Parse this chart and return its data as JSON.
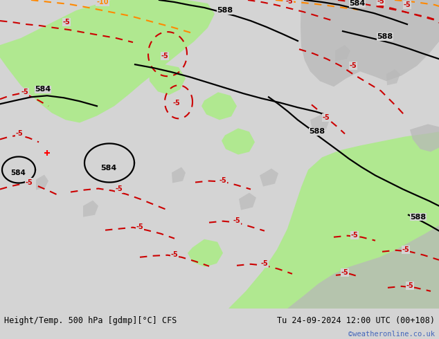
{
  "title_left": "Height/Temp. 500 hPa [gdmp][°C] CFS",
  "title_right": "Tu 24-09-2024 12:00 UTC (00+108)",
  "credit": "©weatheronline.co.uk",
  "bg_color": "#d4d4d4",
  "land_color": "#b8b8b8",
  "green_color": "#b0e890",
  "bottom_bar_color": "#e0e0e0",
  "black_color": "#000000",
  "red_color": "#cc0000",
  "orange_color": "#ff8800",
  "credit_color": "#4466bb",
  "figsize": [
    6.34,
    4.9
  ],
  "dpi": 100
}
